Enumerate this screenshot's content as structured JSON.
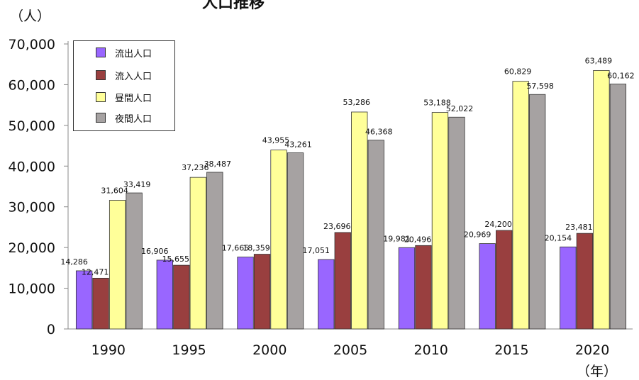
{
  "header": {
    "title": "人口推移",
    "y_unit": "（人）",
    "x_unit": "（年）"
  },
  "colors": {
    "流出人口": "#9966ff",
    "流入人口": "#993f3f",
    "昼間人口": "#ffff99",
    "夜間人口": "#a6a2a2"
  },
  "chart_data": {
    "type": "bar",
    "title": "",
    "xlabel": "（年）",
    "ylabel": "（人）",
    "categories": [
      "1990",
      "1995",
      "2000",
      "2005",
      "2010",
      "2015",
      "2020"
    ],
    "ylim": [
      0,
      70000
    ],
    "yticks": [
      "0",
      "10,000",
      "20,000",
      "30,000",
      "40,000",
      "50,000",
      "60,000",
      "70,000"
    ],
    "grid": false,
    "legend_position": "top-left",
    "series": [
      {
        "name": "流出人口",
        "values": [
          14286,
          16906,
          17665,
          17051,
          19981,
          20969,
          20154
        ],
        "labels": [
          "14,286",
          "16,906",
          "17,665",
          "17,051",
          "19,981",
          "20,969",
          "20,154"
        ]
      },
      {
        "name": "流入人口",
        "values": [
          12471,
          15655,
          18359,
          23696,
          20496,
          24200,
          23481
        ],
        "labels": [
          "12,471",
          "15,655",
          "18,359",
          "23,696",
          "20,496",
          "24,200",
          "23,481"
        ]
      },
      {
        "name": "昼間人口",
        "values": [
          31604,
          37236,
          43955,
          53286,
          53188,
          60829,
          63489
        ],
        "labels": [
          "31,604",
          "37,236",
          "43,955",
          "53,286",
          "53,188",
          "60,829",
          "63,489"
        ]
      },
      {
        "name": "夜間人口",
        "values": [
          33419,
          38487,
          43261,
          46368,
          52022,
          57598,
          60162
        ],
        "labels": [
          "33,419",
          "38,487",
          "43,261",
          "46,368",
          "52,022",
          "57,598",
          "60,162"
        ]
      }
    ]
  }
}
